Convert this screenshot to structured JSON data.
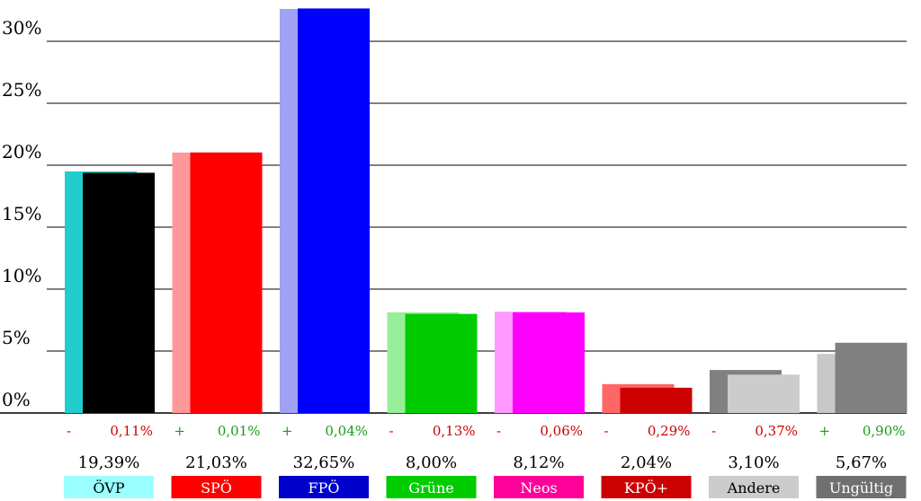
{
  "chart_data": {
    "type": "bar",
    "title": "",
    "xlabel": "",
    "ylabel": "",
    "ylim": [
      0,
      33
    ],
    "grid": true,
    "yticks": [
      "0%",
      "5%",
      "10%",
      "15%",
      "20%",
      "25%",
      "30%"
    ],
    "ytick_values": [
      0,
      5,
      10,
      15,
      20,
      25,
      30
    ],
    "categories": [
      "ÖVP",
      "SPÖ",
      "FPÖ",
      "Grüne",
      "Neos",
      "KPÖ+",
      "Andere",
      "Ungültig"
    ],
    "values": [
      19.39,
      21.03,
      32.65,
      8.0,
      8.12,
      2.04,
      3.1,
      5.67
    ],
    "value_labels": [
      "19,39%",
      "21,03%",
      "32,65%",
      "8,00%",
      "8,12%",
      "2,04%",
      "3,10%",
      "5,67%"
    ],
    "previous_values": [
      19.5,
      21.02,
      32.61,
      8.13,
      8.18,
      2.33,
      3.47,
      4.77
    ],
    "change_signs": [
      "-",
      "+",
      "+",
      "-",
      "-",
      "-",
      "-",
      "+"
    ],
    "change_labels": [
      "0,11%",
      "0,01%",
      "0,04%",
      "0,13%",
      "0,06%",
      "0,29%",
      "0,37%",
      "0,90%"
    ],
    "bar_colors": [
      "#000000",
      "#ff0000",
      "#0000ff",
      "#00cc00",
      "#ff00ff",
      "#cc0000",
      "#cccccc",
      "#808080"
    ],
    "ghost_colors": [
      "#22cccc",
      "#ff9999",
      "#a0a0f5",
      "#99ee99",
      "#ff99ff",
      "#ff6666",
      "#808080",
      "#c8c8c8"
    ],
    "label_bg_colors": [
      "#99ffff",
      "#ff0000",
      "#0000cc",
      "#00cc00",
      "#ff0099",
      "#cc0000",
      "#cccccc",
      "#707070"
    ],
    "label_text_colors": [
      "#000000",
      "#ffffff",
      "#ffffff",
      "#ffffff",
      "#ffffff",
      "#ffffff",
      "#000000",
      "#ffffff"
    ],
    "change_colors": {
      "+": "#1a9a1a",
      "-": "#cc0000"
    }
  }
}
